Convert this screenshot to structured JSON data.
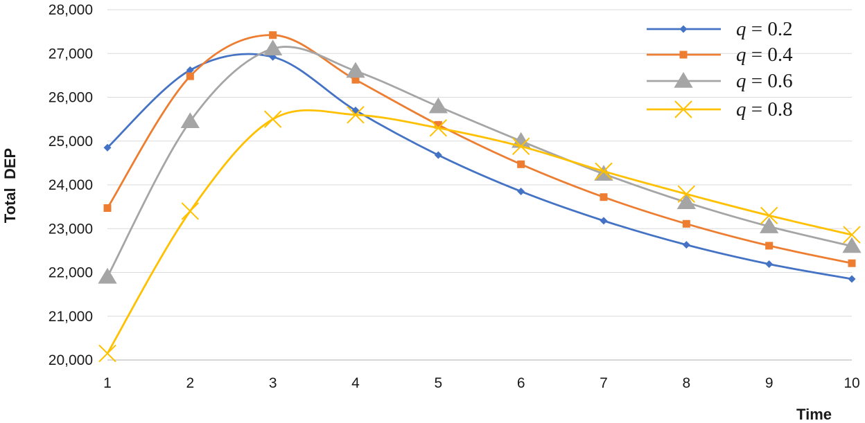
{
  "chart_data": {
    "type": "line",
    "title": "",
    "xlabel": "Time",
    "ylabel": "Total  DEP",
    "x": [
      1,
      2,
      3,
      4,
      5,
      6,
      7,
      8,
      9,
      10
    ],
    "x_tick_labels": [
      "1",
      "2",
      "3",
      "4",
      "5",
      "6",
      "7",
      "8",
      "9",
      "10"
    ],
    "ylim": [
      20000,
      28000
    ],
    "y_tick_labels": [
      "20,000",
      "21,000",
      "22,000",
      "23,000",
      "24,000",
      "25,000",
      "26,000",
      "27,000",
      "28,000"
    ],
    "y_ticks": [
      20000,
      21000,
      22000,
      23000,
      24000,
      25000,
      26000,
      27000,
      28000
    ],
    "grid": "horizontal",
    "smooth": true,
    "legend_position": "top-right",
    "series": [
      {
        "name": "q = 0.2",
        "legend_var": "q",
        "legend_rest": " = 0.2",
        "color": "#4472C4",
        "marker": "diamond",
        "values": [
          24850,
          26620,
          26920,
          25700,
          24680,
          23850,
          23180,
          22630,
          22190,
          21850
        ]
      },
      {
        "name": "q = 0.4",
        "legend_var": "q",
        "legend_rest": " = 0.4",
        "color": "#ED7D31",
        "marker": "square",
        "values": [
          23470,
          26480,
          27420,
          26400,
          25370,
          24470,
          23720,
          23110,
          22610,
          22210
        ]
      },
      {
        "name": "q = 0.6",
        "legend_var": "q",
        "legend_rest": " = 0.6",
        "color": "#A5A5A5",
        "marker": "triangle",
        "values": [
          21900,
          25450,
          27110,
          26600,
          25790,
          25000,
          24250,
          23600,
          23050,
          22600
        ]
      },
      {
        "name": "q = 0.8",
        "legend_var": "q",
        "legend_rest": " = 0.8",
        "color": "#FFC000",
        "marker": "x",
        "values": [
          20150,
          23400,
          25500,
          25600,
          25300,
          24880,
          24310,
          23790,
          23300,
          22860
        ]
      }
    ]
  }
}
